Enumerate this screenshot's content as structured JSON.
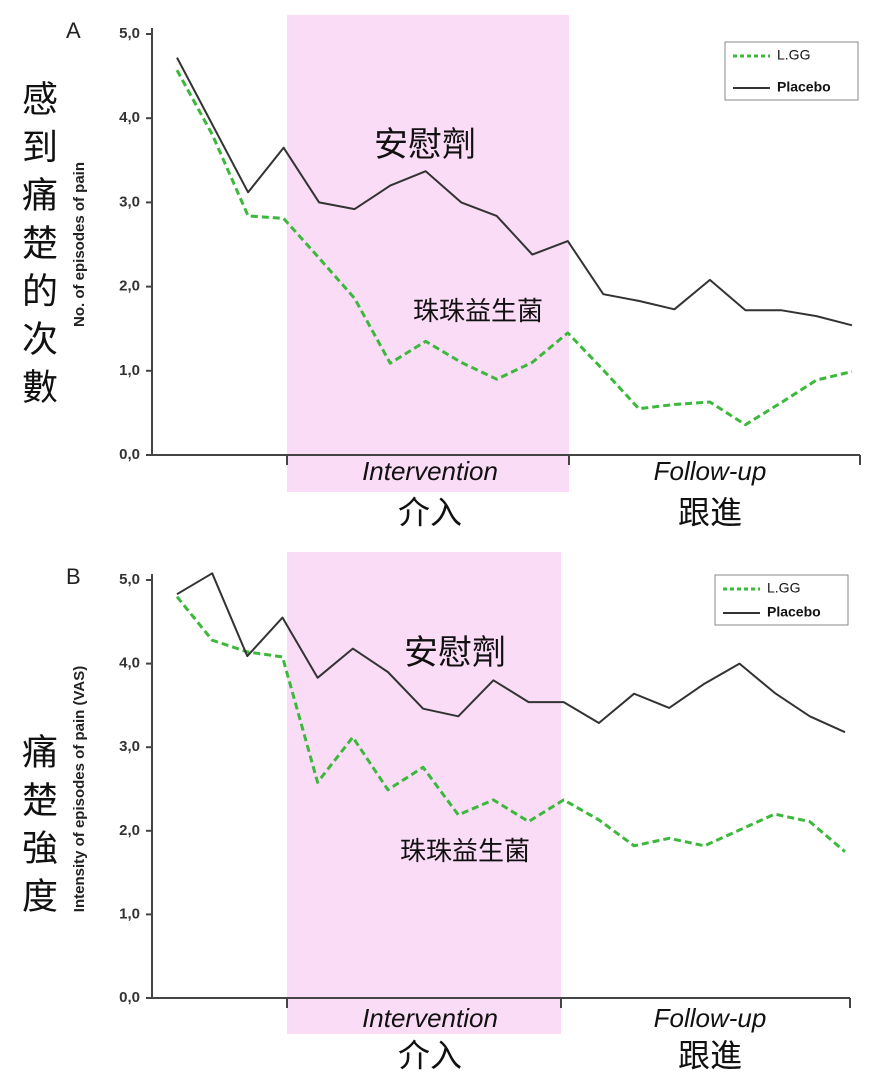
{
  "chart_data": [
    {
      "type": "line",
      "panel_label": "A",
      "side_label": "感到痛楚的次數",
      "y_label": "No. of episodes of pain",
      "categories": [
        null,
        null,
        null,
        null,
        null,
        null,
        null,
        null,
        null,
        null,
        null,
        null,
        null,
        null,
        null,
        null,
        null,
        null,
        null,
        null
      ],
      "series": [
        {
          "name": "L.GG",
          "color": "#3cb83c",
          "dash": true,
          "values": [
            4.57,
            3.8,
            2.84,
            2.81,
            2.34,
            1.86,
            1.09,
            1.35,
            1.1,
            0.9,
            1.1,
            1.45,
            1.01,
            0.55,
            0.6,
            0.63,
            0.36,
            0.62,
            0.89,
            0.99
          ]
        },
        {
          "name": "Placebo",
          "color": "#333333",
          "dash": false,
          "values": [
            4.72,
            3.92,
            3.12,
            3.65,
            3.0,
            2.92,
            3.2,
            3.37,
            3.0,
            2.84,
            2.38,
            2.54,
            1.91,
            1.83,
            1.73,
            2.08,
            1.72,
            1.72,
            1.65,
            1.54
          ]
        }
      ],
      "ylim": [
        0,
        5
      ],
      "yticks": [
        {
          "value": 0,
          "label": "0,0"
        },
        {
          "value": 1,
          "label": "1,0"
        },
        {
          "value": 2,
          "label": "2,0"
        },
        {
          "value": 3,
          "label": "3,0"
        },
        {
          "value": 4,
          "label": "4,0"
        },
        {
          "value": 5,
          "label": "5,0"
        }
      ],
      "annotations": [
        "安慰劑",
        "珠珠益生菌"
      ],
      "phases": [
        "Intervention",
        "Follow-up"
      ],
      "phases_zh": [
        "介入",
        "跟進"
      ],
      "legend": "upper right"
    },
    {
      "type": "line",
      "panel_label": "B",
      "side_label": "痛楚強度",
      "y_label": "Intensity of episodes of pain (VAS)",
      "categories": [
        null,
        null,
        null,
        null,
        null,
        null,
        null,
        null,
        null,
        null,
        null,
        null,
        null,
        null,
        null,
        null,
        null,
        null,
        null,
        null
      ],
      "series": [
        {
          "name": "L.GG",
          "color": "#3cb83c",
          "dash": true,
          "values": [
            4.8,
            4.28,
            4.14,
            4.08,
            2.58,
            3.12,
            2.49,
            2.76,
            2.19,
            2.37,
            2.11,
            2.37,
            2.13,
            1.82,
            1.91,
            1.82,
            2.01,
            2.2,
            2.11,
            1.75
          ]
        },
        {
          "name": "Placebo",
          "color": "#333333",
          "dash": false,
          "values": [
            4.83,
            5.08,
            4.09,
            4.55,
            3.83,
            4.18,
            3.9,
            3.46,
            3.37,
            3.8,
            3.54,
            3.54,
            3.29,
            3.64,
            3.47,
            3.76,
            4.0,
            3.65,
            3.37,
            3.18
          ]
        }
      ],
      "ylim": [
        0,
        5
      ],
      "yticks": [
        {
          "value": 0,
          "label": "0,0"
        },
        {
          "value": 1,
          "label": "1,0"
        },
        {
          "value": 2,
          "label": "2,0"
        },
        {
          "value": 3,
          "label": "3,0"
        },
        {
          "value": 4,
          "label": "4,0"
        },
        {
          "value": 5,
          "label": "5,0"
        }
      ],
      "annotations": [
        "安慰劑",
        "珠珠益生菌"
      ],
      "phases": [
        "Intervention",
        "Follow-up"
      ],
      "phases_zh": [
        "介入",
        "跟進"
      ],
      "legend": "upper right"
    }
  ]
}
